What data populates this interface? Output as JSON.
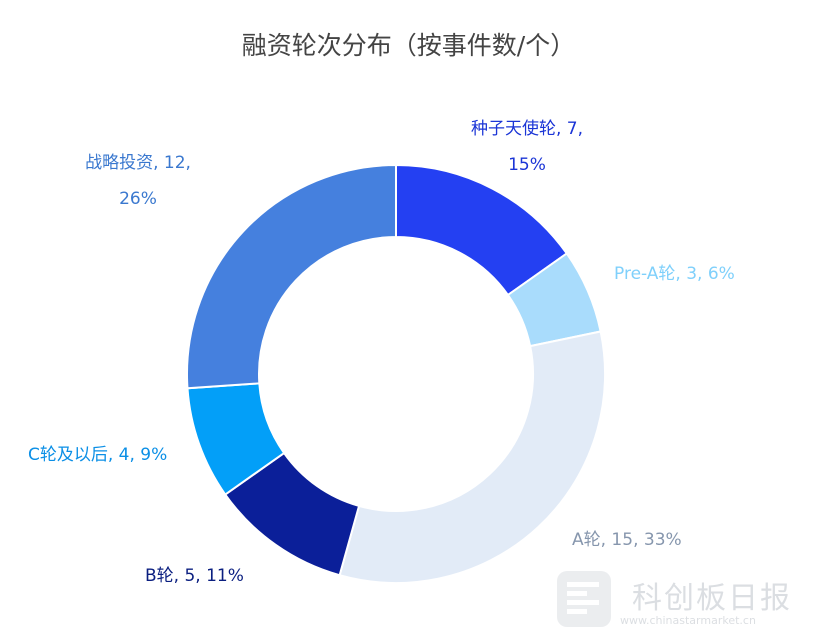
{
  "chart_data": {
    "type": "pie",
    "donut": true,
    "title": "融资轮次分布（按事件数/个）",
    "slices": [
      {
        "name": "种子天使轮",
        "value": 7,
        "percent": "15%",
        "color": "#2440f2",
        "label_lines": [
          "种子天使轮, 7,",
          "15%"
        ]
      },
      {
        "name": "Pre-A轮",
        "value": 3,
        "percent": "6%",
        "color": "#a9dcfc",
        "label_lines": [
          "Pre-A轮, 3, 6%"
        ]
      },
      {
        "name": "A轮",
        "value": 15,
        "percent": "33%",
        "color": "#e2ebf7",
        "label_lines": [
          "A轮, 15, 33%"
        ]
      },
      {
        "name": "B轮",
        "value": 5,
        "percent": "11%",
        "color": "#0b1f99",
        "label_lines": [
          "B轮, 5, 11%"
        ]
      },
      {
        "name": "C轮及以后",
        "value": 4,
        "percent": "9%",
        "color": "#039ff8",
        "label_lines": [
          "C轮及以后, 4, 9%"
        ]
      },
      {
        "name": "战略投资",
        "value": 12,
        "percent": "26%",
        "color": "#4580de",
        "label_lines": [
          "战略投资, 12,",
          "26%"
        ]
      }
    ],
    "label_colors": [
      "#1b35d6",
      "#7fd0fb",
      "#8696ad",
      "#0b1f80",
      "#0b8fe6",
      "#3a78cf"
    ],
    "legend": "none"
  },
  "watermark": {
    "text": "科创板日报",
    "url": "www.chinastarmarket.cn"
  }
}
